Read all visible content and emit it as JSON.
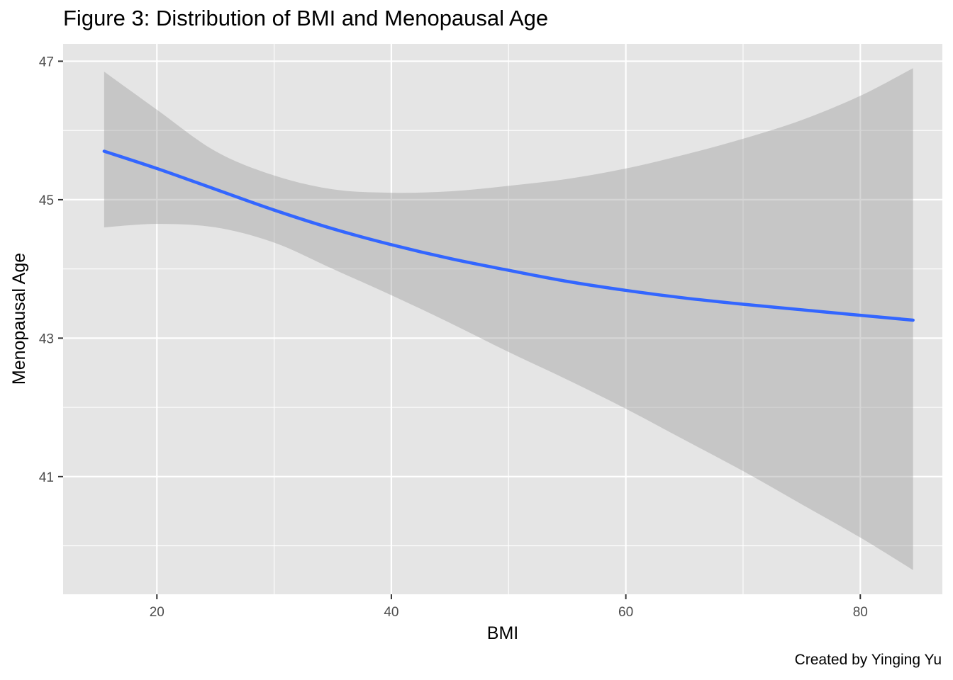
{
  "title": "Figure 3: Distribution of BMI and Menopausal Age",
  "caption": "Created by Yinging Yu",
  "colors": {
    "panel": "#e5e5e5",
    "grid": "#ffffff",
    "line": "#3366ff",
    "ribbon": "#999999"
  },
  "chart_data": {
    "type": "line",
    "title": "Figure 3: Distribution of BMI and Menopausal Age",
    "xlabel": "BMI",
    "ylabel": "Menopausal Age",
    "xlim": [
      12,
      87
    ],
    "ylim": [
      39.3,
      47.25
    ],
    "x_ticks": [
      20,
      40,
      60,
      80
    ],
    "y_ticks": [
      41,
      43,
      45,
      47
    ],
    "grid": true,
    "legend": "none",
    "series": [
      {
        "x": [
          15.5,
          20,
          25,
          30,
          35,
          40,
          45,
          50,
          55,
          60,
          65,
          70,
          75,
          80,
          84.5
        ],
        "y": [
          45.7,
          45.45,
          45.15,
          44.85,
          44.58,
          44.35,
          44.15,
          43.98,
          43.82,
          43.69,
          43.58,
          43.49,
          43.41,
          43.33,
          43.26
        ],
        "ci_upper": [
          46.85,
          46.3,
          45.7,
          45.35,
          45.15,
          45.1,
          45.12,
          45.2,
          45.3,
          45.45,
          45.65,
          45.88,
          46.15,
          46.5,
          46.9
        ],
        "ci_lower": [
          44.6,
          44.65,
          44.6,
          44.38,
          44.0,
          43.62,
          43.22,
          42.8,
          42.4,
          41.98,
          41.53,
          41.08,
          40.6,
          40.12,
          39.65
        ]
      }
    ]
  }
}
